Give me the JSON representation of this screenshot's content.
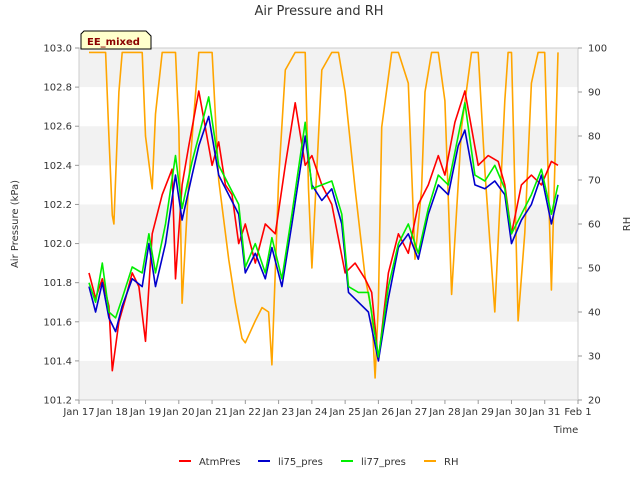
{
  "chart_data": {
    "type": "line",
    "title": "Air Pressure and RH",
    "xlabel": "Time",
    "ylabel": "Air Pressure (kPa)",
    "y2label": "RH",
    "badge": "EE_mixed",
    "xlim": [
      17,
      32
    ],
    "ylim": [
      101.2,
      103.0
    ],
    "y2lim": [
      20,
      100
    ],
    "grid": "horizontal-bands",
    "legend_position": "bottom",
    "x_ticks": [
      {
        "v": 17,
        "label": "Jan 17"
      },
      {
        "v": 18,
        "label": "Jan 18"
      },
      {
        "v": 19,
        "label": "Jan 19"
      },
      {
        "v": 20,
        "label": "Jan 20"
      },
      {
        "v": 21,
        "label": "Jan 21"
      },
      {
        "v": 22,
        "label": "Jan 22"
      },
      {
        "v": 23,
        "label": "Jan 23"
      },
      {
        "v": 24,
        "label": "Jan 24"
      },
      {
        "v": 25,
        "label": "Jan 25"
      },
      {
        "v": 26,
        "label": "Jan 26"
      },
      {
        "v": 27,
        "label": "Jan 27"
      },
      {
        "v": 28,
        "label": "Jan 28"
      },
      {
        "v": 29,
        "label": "Jan 29"
      },
      {
        "v": 30,
        "label": "Jan 30"
      },
      {
        "v": 31,
        "label": "Jan 31"
      },
      {
        "v": 32,
        "label": "Feb 1"
      }
    ],
    "y_ticks": [
      "101.2",
      "101.4",
      "101.6",
      "101.8",
      "102.0",
      "102.2",
      "102.4",
      "102.6",
      "102.8",
      "103.0"
    ],
    "y2_ticks": [
      "20",
      "30",
      "40",
      "50",
      "60",
      "70",
      "80",
      "90",
      "100"
    ],
    "series": [
      {
        "name": "AtmPres",
        "axis": "left",
        "color": "#ff0000",
        "x": [
          17.3,
          17.5,
          17.7,
          17.9,
          18.0,
          18.2,
          18.4,
          18.6,
          18.8,
          19.0,
          19.2,
          19.5,
          19.8,
          19.9,
          20.1,
          20.3,
          20.6,
          21.0,
          21.2,
          21.4,
          21.6,
          21.8,
          22.0,
          22.3,
          22.6,
          22.9,
          23.2,
          23.5,
          23.8,
          24.0,
          24.3,
          24.6,
          25.0,
          25.3,
          25.6,
          25.8,
          26.0,
          26.3,
          26.6,
          26.9,
          27.2,
          27.5,
          27.8,
          28.0,
          28.3,
          28.6,
          29.0,
          29.3,
          29.6,
          29.8,
          30.0,
          30.3,
          30.6,
          30.9,
          31.2,
          31.4
        ],
        "y": [
          101.85,
          101.72,
          101.82,
          101.68,
          101.35,
          101.6,
          101.72,
          101.85,
          101.78,
          101.5,
          102.05,
          102.25,
          102.38,
          101.82,
          102.3,
          102.5,
          102.78,
          102.4,
          102.52,
          102.3,
          102.25,
          102.0,
          102.1,
          101.9,
          102.1,
          102.05,
          102.4,
          102.72,
          102.4,
          102.45,
          102.3,
          102.2,
          101.85,
          101.9,
          101.82,
          101.75,
          101.4,
          101.85,
          102.05,
          101.95,
          102.2,
          102.3,
          102.45,
          102.35,
          102.62,
          102.78,
          102.4,
          102.45,
          102.42,
          102.3,
          102.05,
          102.3,
          102.35,
          102.3,
          102.42,
          102.4
        ]
      },
      {
        "name": "li75_pres",
        "axis": "left",
        "color": "#0000cc",
        "x": [
          17.3,
          17.5,
          17.7,
          17.9,
          18.1,
          18.3,
          18.6,
          18.9,
          19.1,
          19.3,
          19.6,
          19.9,
          20.1,
          20.4,
          20.6,
          20.9,
          21.2,
          21.5,
          21.8,
          22.0,
          22.3,
          22.6,
          22.8,
          23.1,
          23.4,
          23.8,
          24.0,
          24.3,
          24.6,
          24.9,
          25.1,
          25.4,
          25.7,
          26.0,
          26.3,
          26.6,
          26.9,
          27.2,
          27.5,
          27.8,
          28.1,
          28.4,
          28.6,
          28.9,
          29.2,
          29.5,
          29.8,
          30.0,
          30.3,
          30.6,
          30.9,
          31.2,
          31.4
        ],
        "y": [
          101.78,
          101.65,
          101.8,
          101.62,
          101.55,
          101.68,
          101.82,
          101.78,
          102.0,
          101.78,
          102.0,
          102.35,
          102.12,
          102.35,
          102.5,
          102.65,
          102.35,
          102.25,
          102.15,
          101.85,
          101.95,
          101.82,
          101.98,
          101.78,
          102.1,
          102.55,
          102.3,
          102.22,
          102.28,
          102.1,
          101.75,
          101.7,
          101.65,
          101.4,
          101.72,
          101.98,
          102.05,
          101.92,
          102.15,
          102.3,
          102.25,
          102.5,
          102.58,
          102.3,
          102.28,
          102.32,
          102.25,
          102.0,
          102.12,
          102.2,
          102.35,
          102.1,
          102.25
        ]
      },
      {
        "name": "li77_pres",
        "axis": "left",
        "color": "#00ee00",
        "x": [
          17.3,
          17.5,
          17.7,
          17.9,
          18.1,
          18.3,
          18.6,
          18.9,
          19.1,
          19.3,
          19.6,
          19.9,
          20.1,
          20.4,
          20.6,
          20.9,
          21.2,
          21.5,
          21.8,
          22.0,
          22.3,
          22.6,
          22.8,
          23.1,
          23.4,
          23.8,
          24.0,
          24.3,
          24.6,
          24.9,
          25.1,
          25.4,
          25.7,
          26.0,
          26.3,
          26.6,
          26.9,
          27.2,
          27.5,
          27.8,
          28.1,
          28.4,
          28.6,
          28.9,
          29.2,
          29.5,
          29.8,
          30.0,
          30.3,
          30.6,
          30.9,
          31.2,
          31.4
        ],
        "y": [
          101.8,
          101.7,
          101.9,
          101.65,
          101.62,
          101.72,
          101.88,
          101.85,
          102.05,
          101.85,
          102.1,
          102.45,
          102.18,
          102.42,
          102.55,
          102.75,
          102.4,
          102.3,
          102.2,
          101.88,
          102.0,
          101.85,
          102.03,
          101.82,
          102.15,
          102.62,
          102.28,
          102.3,
          102.32,
          102.15,
          101.78,
          101.75,
          101.75,
          101.42,
          101.78,
          102.0,
          102.1,
          101.95,
          102.18,
          102.35,
          102.3,
          102.55,
          102.72,
          102.35,
          102.32,
          102.4,
          102.28,
          102.05,
          102.15,
          102.25,
          102.38,
          102.15,
          102.3
        ]
      },
      {
        "name": "RH",
        "axis": "right",
        "color": "#ffa500",
        "x": [
          17.3,
          17.8,
          17.9,
          18.0,
          18.05,
          18.2,
          18.3,
          18.6,
          18.9,
          19.0,
          19.2,
          19.3,
          19.5,
          19.9,
          20.0,
          20.1,
          20.3,
          20.6,
          20.8,
          21.0,
          21.2,
          21.5,
          21.7,
          21.9,
          22.0,
          22.3,
          22.5,
          22.7,
          22.8,
          23.0,
          23.2,
          23.5,
          23.8,
          23.9,
          24.0,
          24.3,
          24.6,
          24.8,
          25.0,
          25.3,
          25.6,
          25.8,
          25.9,
          26.0,
          26.1,
          26.4,
          26.6,
          26.9,
          27.1,
          27.3,
          27.4,
          27.6,
          27.8,
          28.0,
          28.2,
          28.5,
          28.8,
          29.0,
          29.2,
          29.5,
          29.8,
          29.9,
          30.0,
          30.2,
          30.4,
          30.6,
          30.8,
          31.0,
          31.2,
          31.4
        ],
        "y": [
          99,
          99,
          80,
          62,
          60,
          90,
          99,
          99,
          99,
          80,
          68,
          85,
          99,
          99,
          82,
          42,
          70,
          99,
          99,
          99,
          70,
          52,
          42,
          34,
          33,
          38,
          41,
          40,
          28,
          70,
          95,
          99,
          99,
          68,
          50,
          95,
          99,
          99,
          90,
          68,
          48,
          40,
          25,
          42,
          82,
          99,
          99,
          92,
          52,
          68,
          90,
          99,
          99,
          88,
          44,
          82,
          99,
          99,
          72,
          40,
          88,
          99,
          99,
          38,
          58,
          92,
          99,
          99,
          45,
          99
        ]
      }
    ]
  }
}
